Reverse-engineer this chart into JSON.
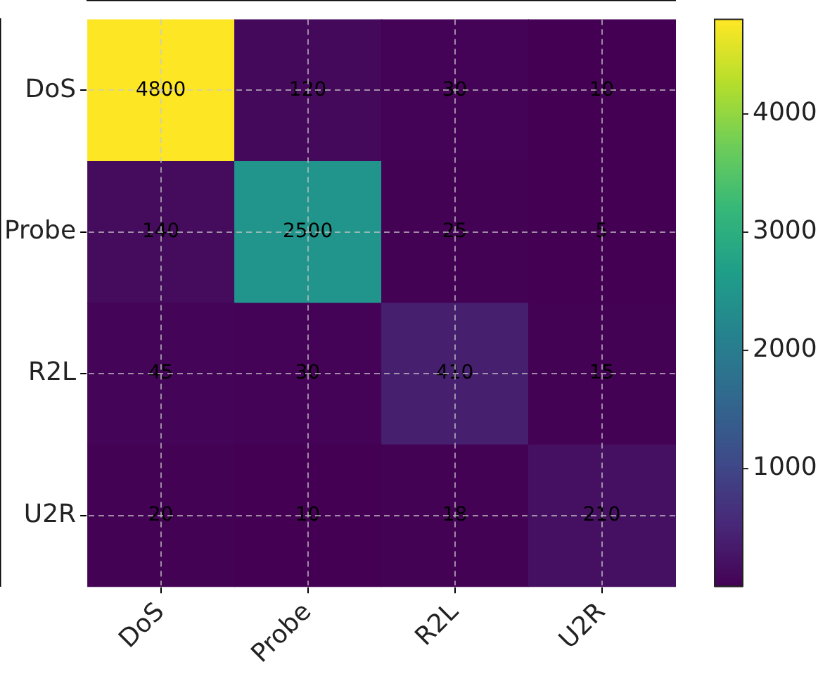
{
  "chart_data": {
    "type": "heatmap",
    "categories": [
      "DoS",
      "Probe",
      "R2L",
      "U2R"
    ],
    "y_categories": [
      "DoS",
      "Probe",
      "R2L",
      "U2R"
    ],
    "cells": [
      [
        4800,
        120,
        30,
        10
      ],
      [
        140,
        2500,
        25,
        5
      ],
      [
        45,
        30,
        410,
        15
      ],
      [
        20,
        10,
        18,
        210
      ]
    ],
    "clim": [
      5,
      4800
    ],
    "cticks": [
      1000,
      2000,
      3000,
      4000
    ],
    "grid": true,
    "data_labels": true
  }
}
